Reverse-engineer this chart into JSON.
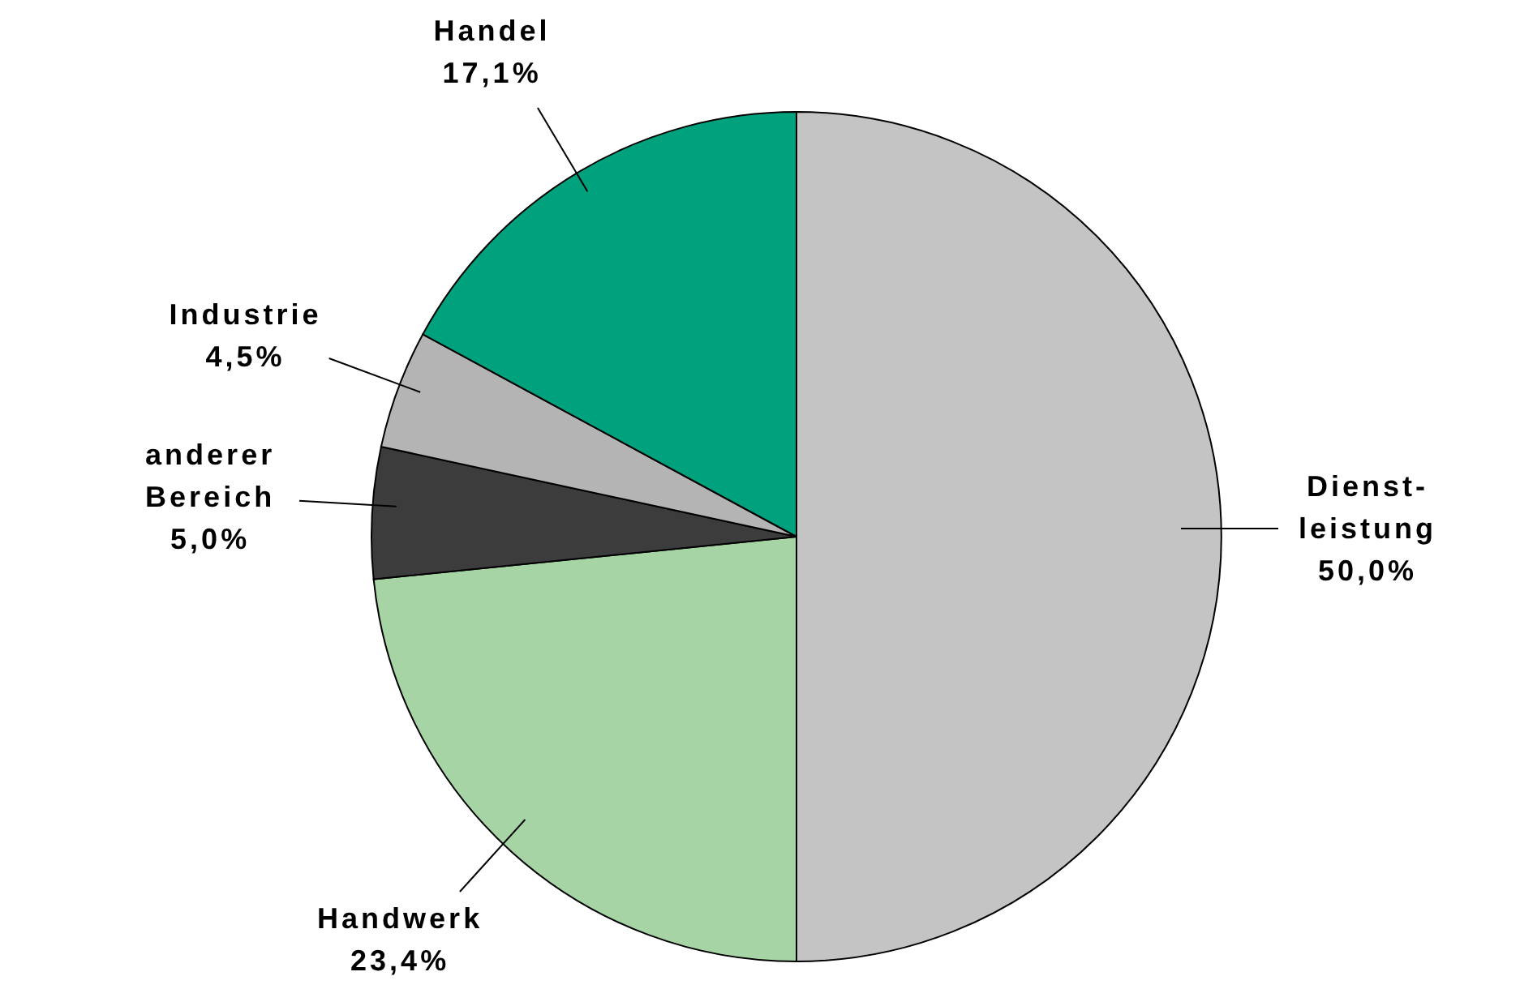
{
  "chart_data": {
    "type": "pie",
    "categories": [
      "Dienst-\nleistung",
      "Handwerk",
      "anderer\nBereich",
      "Industrie",
      "Handel"
    ],
    "values": [
      50.0,
      23.4,
      5.0,
      4.5,
      17.1
    ],
    "value_labels": [
      "50,0%",
      "23,4%",
      "5,0%",
      "4,5%",
      "17,1%"
    ],
    "colors": [
      "#c4c4c4",
      "#a6d4a4",
      "#3c3c3c",
      "#b4b4b4",
      "#00a27e"
    ],
    "legend": false
  }
}
